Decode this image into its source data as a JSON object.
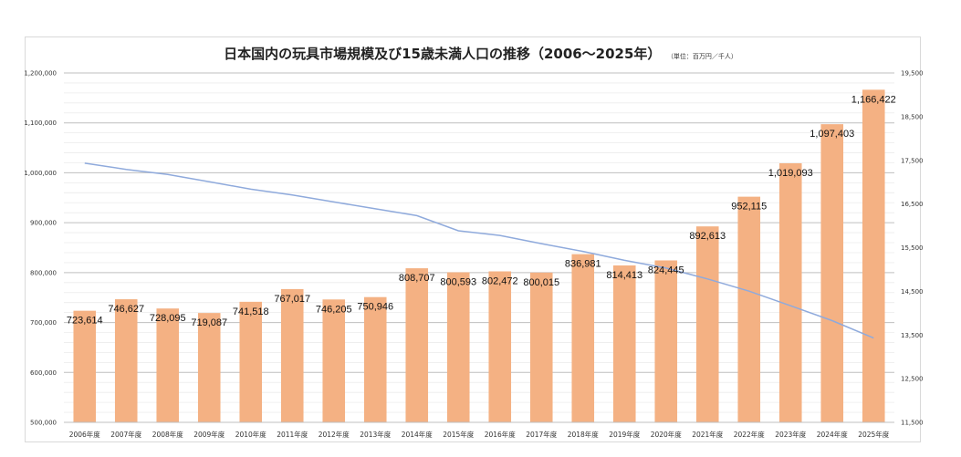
{
  "chart_data": {
    "type": "bar",
    "title": "日本国内の玩具市場規模及び15歳未満人口の推移（2006～2025年）",
    "unit_note": "（単位：百万円／千人）",
    "categories": [
      "2006年度",
      "2007年度",
      "2008年度",
      "2009年度",
      "2010年度",
      "2011年度",
      "2012年度",
      "2013年度",
      "2014年度",
      "2015年度",
      "2016年度",
      "2017年度",
      "2018年度",
      "2019年度",
      "2020年度",
      "2021年度",
      "2022年度",
      "2023年度",
      "2024年度",
      "2025年度"
    ],
    "series": [
      {
        "type": "bar",
        "axis": "left",
        "color": "#f4b183",
        "values": [
          723614,
          746627,
          728095,
          719087,
          741518,
          767017,
          746205,
          750946,
          808707,
          800593,
          802472,
          800015,
          836981,
          814413,
          824445,
          892613,
          952115,
          1019093,
          1097403,
          1166422
        ],
        "labels": [
          "723,614",
          "746,627",
          "728,095",
          "719,087",
          "741,518",
          "767,017",
          "746,205",
          "750,946",
          "808,707",
          "800,593",
          "802,472",
          "800,015",
          "836,981",
          "814,413",
          "824,445",
          "892,613",
          "952,115",
          "1,019,093",
          "1,097,403",
          "1,166,422"
        ]
      },
      {
        "type": "line",
        "axis": "right",
        "color": "#8faadc",
        "values": [
          17435,
          17293,
          17176,
          17011,
          16839,
          16705,
          16547,
          16390,
          16233,
          15887,
          15780,
          15592,
          15415,
          15210,
          15032,
          14784,
          14503,
          14170,
          13830,
          13430
        ]
      }
    ],
    "y_left": {
      "min": 500000,
      "max": 1200000,
      "step": 100000,
      "ticks": [
        "500,000",
        "600,000",
        "700,000",
        "800,000",
        "900,000",
        "1,000,000",
        "1,100,000",
        "1,200,000"
      ]
    },
    "y_right": {
      "min": 11500,
      "max": 19500,
      "step": 1000,
      "ticks": [
        "11,500",
        "12,500",
        "13,500",
        "14,500",
        "15,500",
        "16,500",
        "17,500",
        "18,500",
        "19,500"
      ]
    },
    "grid": true,
    "legend": "none"
  }
}
